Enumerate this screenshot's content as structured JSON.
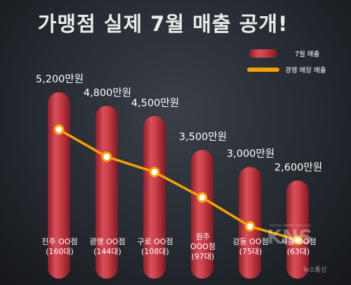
{
  "chart_data": {
    "type": "bar",
    "title": "가맹점 실제 7월 매출 공개!",
    "categories": [
      [
        "진주 OO점",
        "(160대)"
      ],
      [
        "광명 OO점",
        "(144대)"
      ],
      [
        "구로 OO점",
        "(108대)"
      ],
      [
        "원주",
        "OOO점",
        "(97대)"
      ],
      [
        "강동 OO점",
        "(75대)"
      ],
      [
        "시흥 OO점",
        "(63대)"
      ]
    ],
    "values": [
      5200,
      4800,
      4500,
      3500,
      3000,
      2600
    ],
    "value_labels": [
      "5,200만원",
      "4,800만원",
      "4,500만원",
      "3,500만원",
      "3,000만원",
      "2,600만원"
    ],
    "line_values": [
      4100,
      3300,
      2850,
      2100,
      1250,
      850
    ],
    "legend": [
      {
        "label": "7월 매출",
        "kind": "bar",
        "color": "#c93a45"
      },
      {
        "label": "경쟁 매장 매출",
        "kind": "line",
        "color": "#f5a00a"
      }
    ],
    "legend_position": "top-right",
    "ylim": [
      0,
      6300
    ],
    "grid": false,
    "colors": {
      "bar": "#c93a45",
      "line": "#f5a00a",
      "marker_fill": "#ffffff"
    }
  },
  "watermark": {
    "logo": "KNS",
    "small": "Korea News Service",
    "bottom": "뉴스통신"
  }
}
